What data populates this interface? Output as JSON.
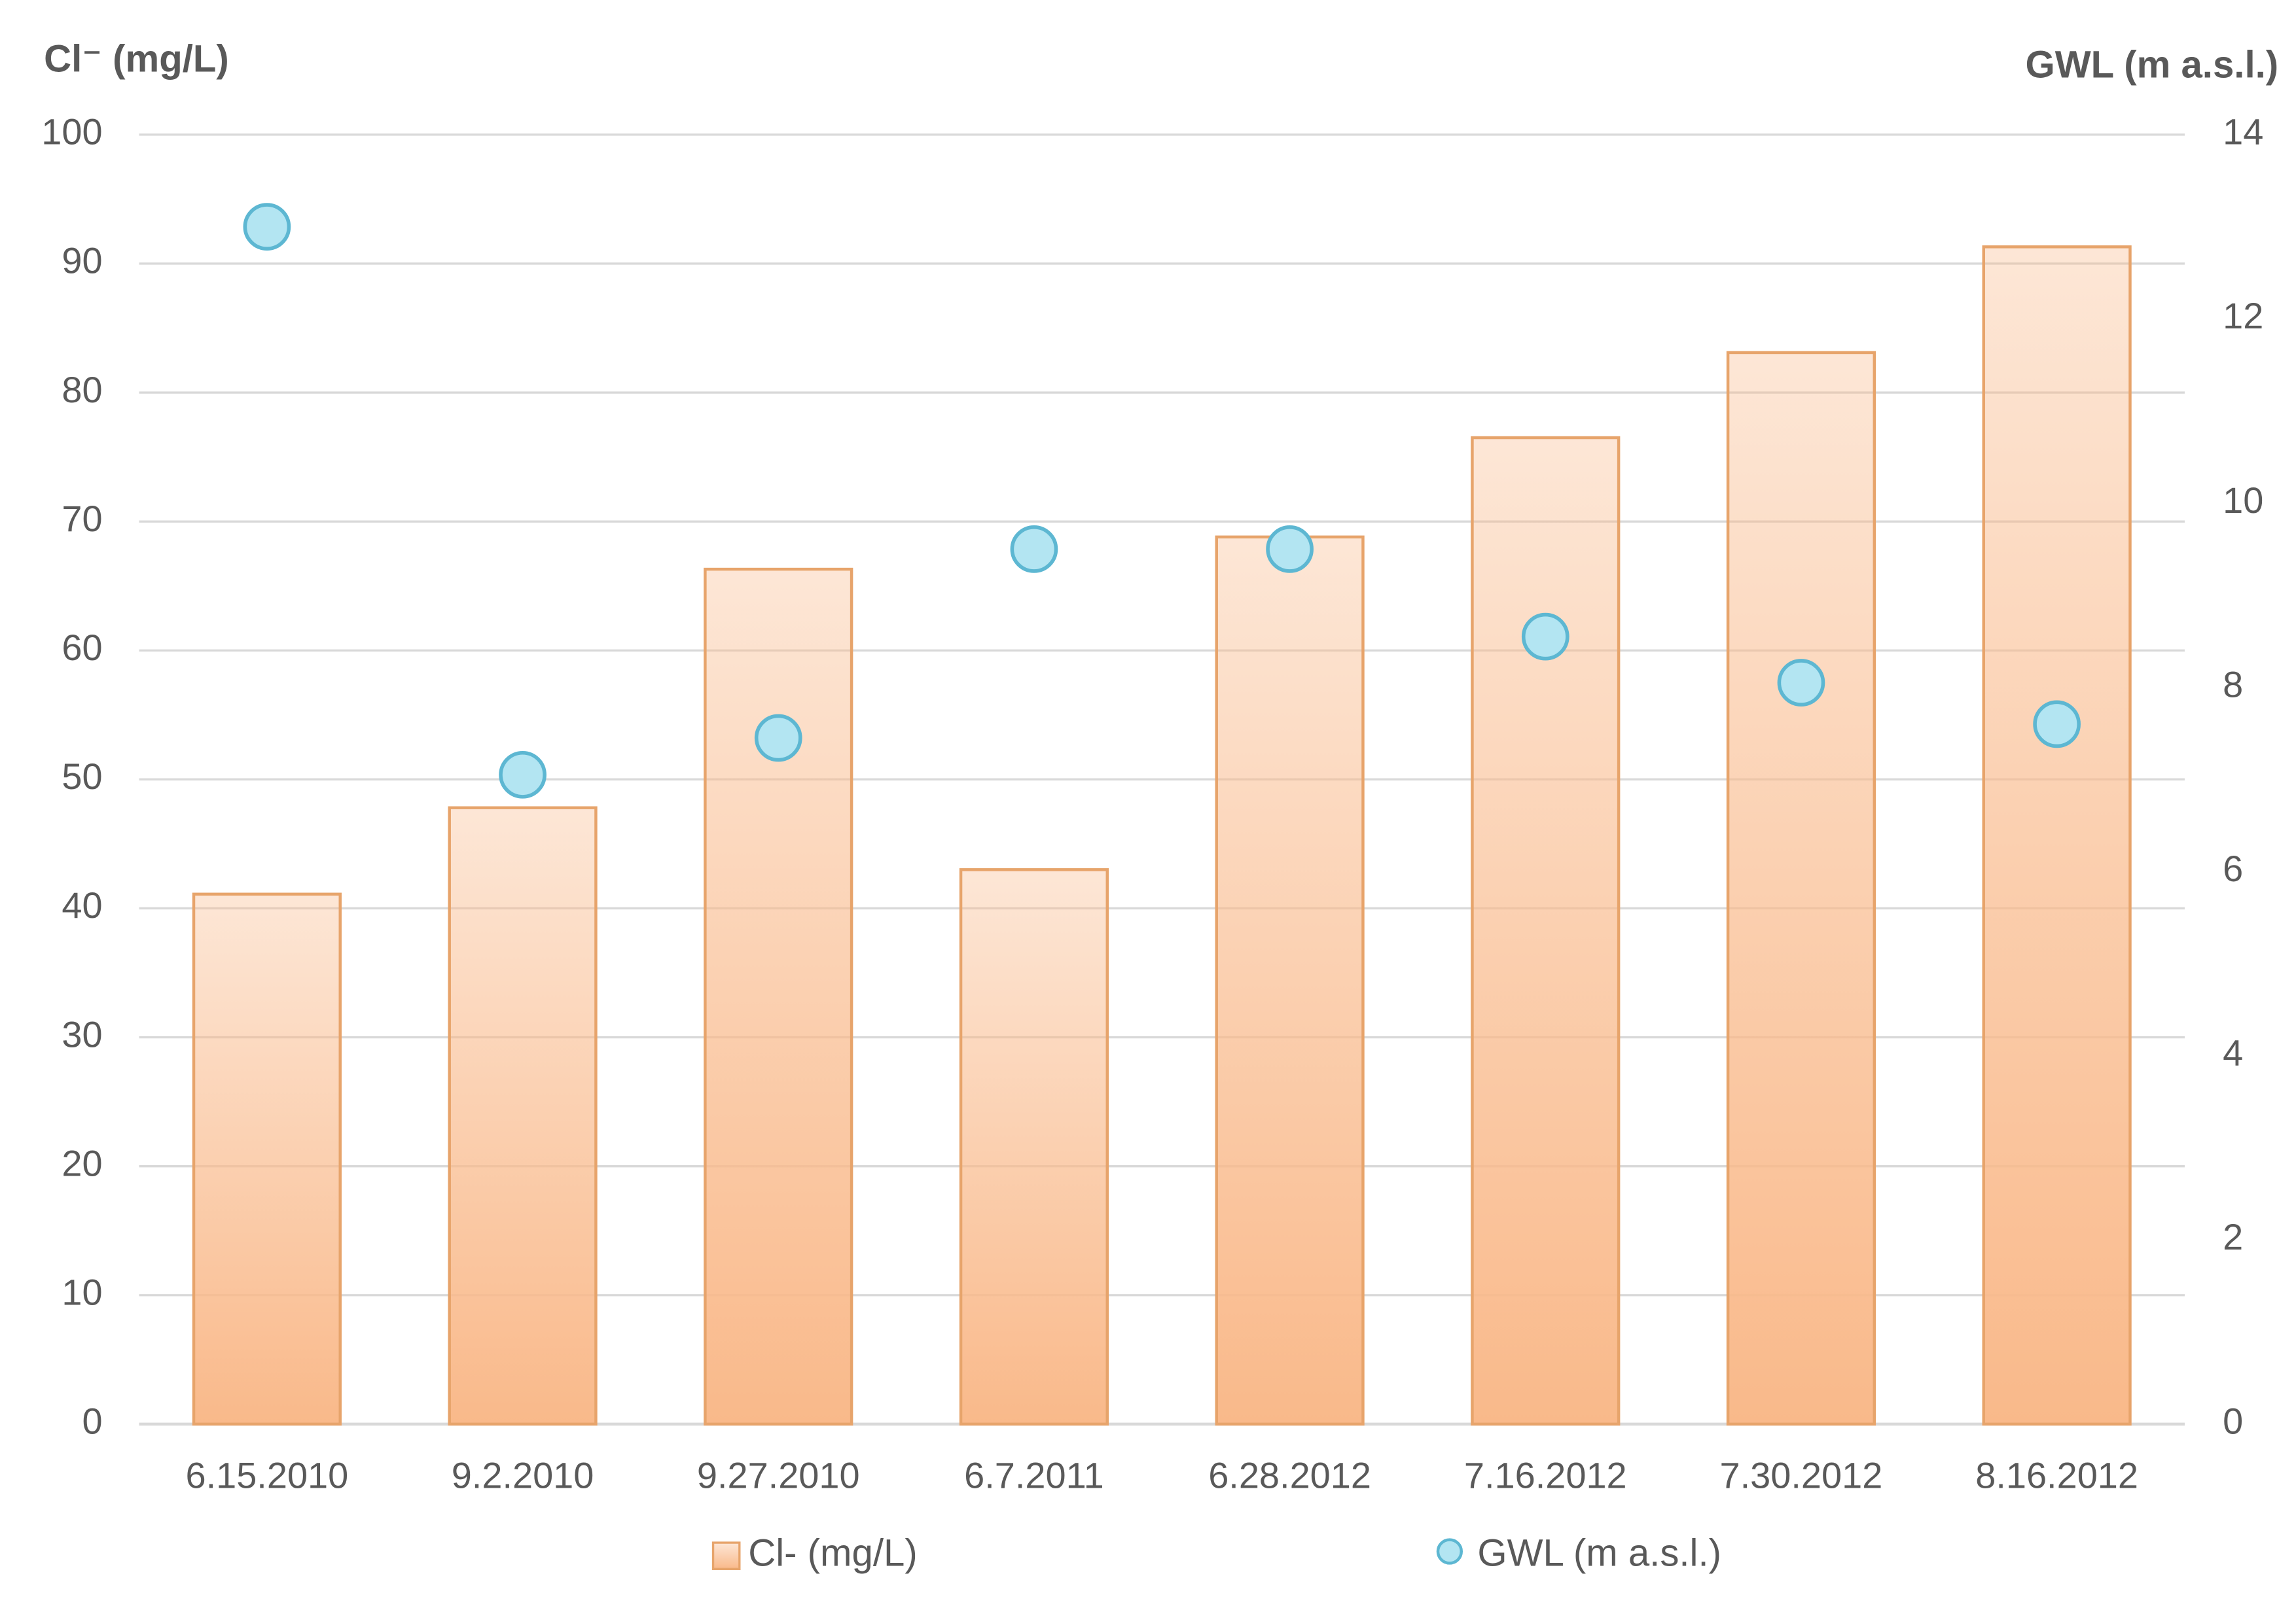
{
  "chart_data": {
    "type": "bar",
    "y_label": "Cl⁻ (mg/L)",
    "y2_label": "GWL (m a.s.l.)",
    "categories": [
      "6.15.2010",
      "9.2.2010",
      "9.27.2010",
      "6.7.2011",
      "6.28.2012",
      "7.16.2012",
      "7.30.2012",
      "8.16.2012"
    ],
    "series": [
      {
        "name": "Cl- (mg/L)",
        "type": "bar",
        "color": "#f9b98a",
        "edge": "#e7a46b",
        "values": [
          41.1,
          47.8,
          66.3,
          43.0,
          68.8,
          76.5,
          83.1,
          91.3
        ]
      },
      {
        "name": "GWL (m a.s.l.)",
        "type": "scatter",
        "axis": "y2",
        "color": "#b3e5f2",
        "edge": "#5db7d2",
        "values": [
          13.0,
          7.05,
          7.45,
          9.5,
          9.5,
          8.55,
          8.05,
          7.6
        ]
      }
    ],
    "ylim": [
      0,
      100
    ],
    "yticks": [
      0,
      10,
      20,
      30,
      40,
      50,
      60,
      70,
      80,
      90,
      100
    ],
    "y2lim": [
      0,
      14
    ],
    "y2ticks": [
      0,
      2,
      4,
      6,
      8,
      10,
      12,
      14
    ],
    "grid": true
  }
}
